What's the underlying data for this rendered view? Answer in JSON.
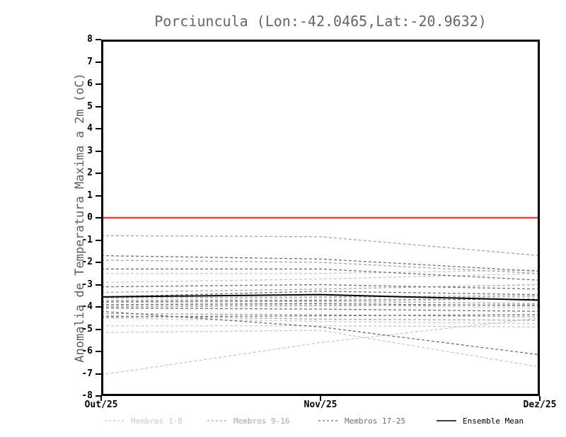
{
  "title": "Porciuncula (Lon:-42.0465,Lat:-20.9632)",
  "chart_data": {
    "type": "line",
    "title": "Porciuncula (Lon:-42.0465,Lat:-20.9632)",
    "xlabel": "",
    "ylabel": "Anomalia de Temperatura Maxima a 2m (oC)",
    "x": [
      "Out/25",
      "Nov/25",
      "Dez/25"
    ],
    "ylim": [
      -8,
      8
    ],
    "yticks": [
      "8",
      "7",
      "6",
      "5",
      "4",
      "3",
      "2",
      "1",
      "0",
      "-1",
      "-2",
      "-3",
      "-4",
      "-5",
      "-6",
      "-7",
      "-8"
    ],
    "grid": false,
    "legend_position": "bottom",
    "zero_line": {
      "value": 0,
      "color": "#fa3c3c"
    },
    "groups": [
      {
        "name": "Membros 1-8",
        "color": "#c9c9c9"
      },
      {
        "name": "Membros 9-16",
        "color": "#a6a6a6"
      },
      {
        "name": "Membros 17-25",
        "color": "#6f6f6f"
      }
    ],
    "series": [
      {
        "name": "Membro 1",
        "group": 0,
        "values": [
          -2.9,
          -2.75,
          -2.5
        ]
      },
      {
        "name": "Membro 2",
        "group": 0,
        "values": [
          -4.85,
          -4.85,
          -4.9
        ]
      },
      {
        "name": "Membro 3",
        "group": 0,
        "values": [
          -5.15,
          -5.05,
          -6.7
        ]
      },
      {
        "name": "Membro 4",
        "group": 0,
        "values": [
          -7.05,
          -5.6,
          -4.5
        ]
      },
      {
        "name": "Membro 5",
        "group": 0,
        "values": [
          -3.7,
          -3.6,
          -3.55
        ]
      },
      {
        "name": "Membro 6",
        "group": 0,
        "values": [
          -3.95,
          -3.9,
          -4.05
        ]
      },
      {
        "name": "Membro 7",
        "group": 0,
        "values": [
          -4.5,
          -4.65,
          -4.75
        ]
      },
      {
        "name": "Membro 8",
        "group": 0,
        "values": [
          -2.5,
          -2.5,
          -2.35
        ]
      },
      {
        "name": "Membro 9",
        "group": 1,
        "values": [
          -0.8,
          -0.85,
          -1.7
        ]
      },
      {
        "name": "Membro 10",
        "group": 1,
        "values": [
          -1.9,
          -2.0,
          -2.5
        ]
      },
      {
        "name": "Membro 11",
        "group": 1,
        "values": [
          -3.35,
          -3.2,
          -3.0
        ]
      },
      {
        "name": "Membro 12",
        "group": 1,
        "values": [
          -3.6,
          -3.55,
          -3.5
        ]
      },
      {
        "name": "Membro 13",
        "group": 1,
        "values": [
          -3.8,
          -3.75,
          -3.85
        ]
      },
      {
        "name": "Membro 14",
        "group": 1,
        "values": [
          -4.0,
          -3.95,
          -3.9
        ]
      },
      {
        "name": "Membro 15",
        "group": 1,
        "values": [
          -4.3,
          -4.35,
          -4.45
        ]
      },
      {
        "name": "Membro 16",
        "group": 1,
        "values": [
          -4.4,
          -4.55,
          -4.6
        ]
      },
      {
        "name": "Membro 17",
        "group": 2,
        "values": [
          -1.7,
          -1.85,
          -2.4
        ]
      },
      {
        "name": "Membro 18",
        "group": 2,
        "values": [
          -2.3,
          -2.3,
          -2.8
        ]
      },
      {
        "name": "Membro 19",
        "group": 2,
        "values": [
          -3.1,
          -3.0,
          -3.2
        ]
      },
      {
        "name": "Membro 20",
        "group": 2,
        "values": [
          -3.75,
          -3.7,
          -3.65
        ]
      },
      {
        "name": "Membro 21",
        "group": 2,
        "values": [
          -3.9,
          -3.85,
          -3.95
        ]
      },
      {
        "name": "Membro 22",
        "group": 2,
        "values": [
          -4.05,
          -4.1,
          -4.2
        ]
      },
      {
        "name": "Membro 23",
        "group": 2,
        "values": [
          -4.2,
          -4.9,
          -6.15
        ]
      },
      {
        "name": "Membro 24",
        "group": 2,
        "values": [
          -4.45,
          -4.4,
          -4.35
        ]
      },
      {
        "name": "Membro 25",
        "group": 2,
        "values": [
          -3.55,
          -3.3,
          -3.45
        ]
      },
      {
        "name": "Ensemble Mean",
        "role": "mean",
        "color": "#000000",
        "values": [
          -3.55,
          -3.45,
          -3.7
        ]
      }
    ],
    "legend": [
      {
        "label": "Membros 1-8",
        "color": "#c9c9c9",
        "style": "dashed"
      },
      {
        "label": "Membros 9-16",
        "color": "#a6a6a6",
        "style": "dashed"
      },
      {
        "label": "Membros 17-25",
        "color": "#6f6f6f",
        "style": "dashed"
      },
      {
        "label": "Ensemble Mean",
        "color": "#000000",
        "style": "solid"
      }
    ]
  }
}
